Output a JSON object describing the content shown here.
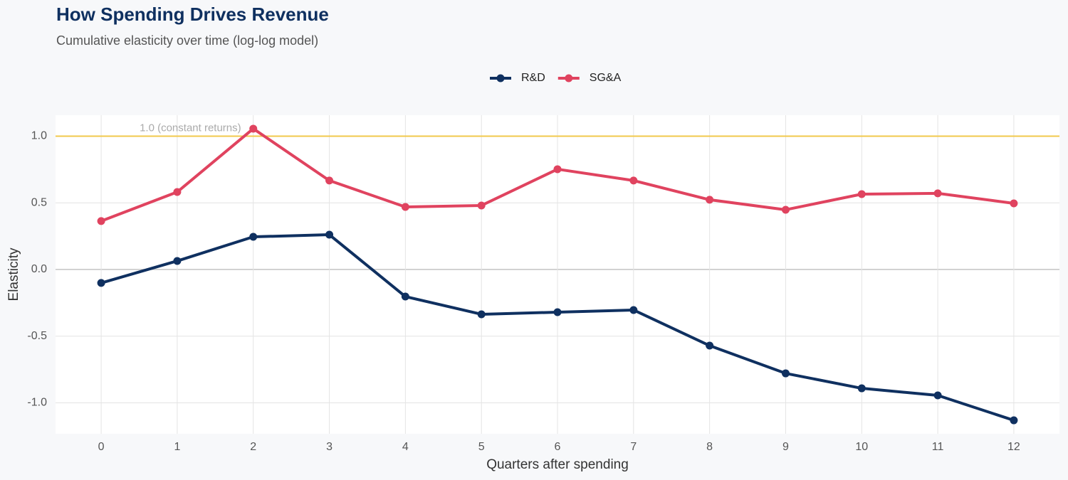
{
  "chart_data": {
    "type": "line",
    "title": "How Spending Drives Revenue",
    "subtitle": "Cumulative elasticity over time (log-log model)",
    "x_label": "Quarters after spending",
    "y_label": "Elasticity",
    "x": [
      0,
      1,
      2,
      3,
      4,
      5,
      6,
      7,
      8,
      9,
      10,
      11,
      12
    ],
    "series": [
      {
        "name": "R&D",
        "color": "#0f3060",
        "values": [
          -0.101,
          0.064,
          0.245,
          0.261,
          -0.203,
          -0.336,
          -0.32,
          -0.304,
          -0.571,
          -0.779,
          -0.891,
          -0.944,
          -1.131
        ]
      },
      {
        "name": "SG&A",
        "color": "#e0435f",
        "values": [
          0.363,
          0.581,
          1.056,
          0.667,
          0.469,
          0.48,
          0.752,
          0.667,
          0.523,
          0.448,
          0.565,
          0.571,
          0.496
        ]
      }
    ],
    "xlim": [
      -0.6,
      12.6
    ],
    "ylim": [
      -1.232,
      1.157
    ],
    "xticks": [
      0,
      1,
      2,
      3,
      4,
      5,
      6,
      7,
      8,
      9,
      10,
      11,
      12
    ],
    "yticks": [
      {
        "value": -1,
        "label": "-1.0"
      },
      -0.5,
      {
        "value": 0,
        "label": "0.0"
      },
      0.5,
      {
        "value": 1,
        "label": "1.0"
      }
    ],
    "grid": true,
    "legend": "top",
    "reference_line": {
      "value": 1,
      "label": "1.0 (constant returns)",
      "color": "#f2c94c"
    }
  }
}
